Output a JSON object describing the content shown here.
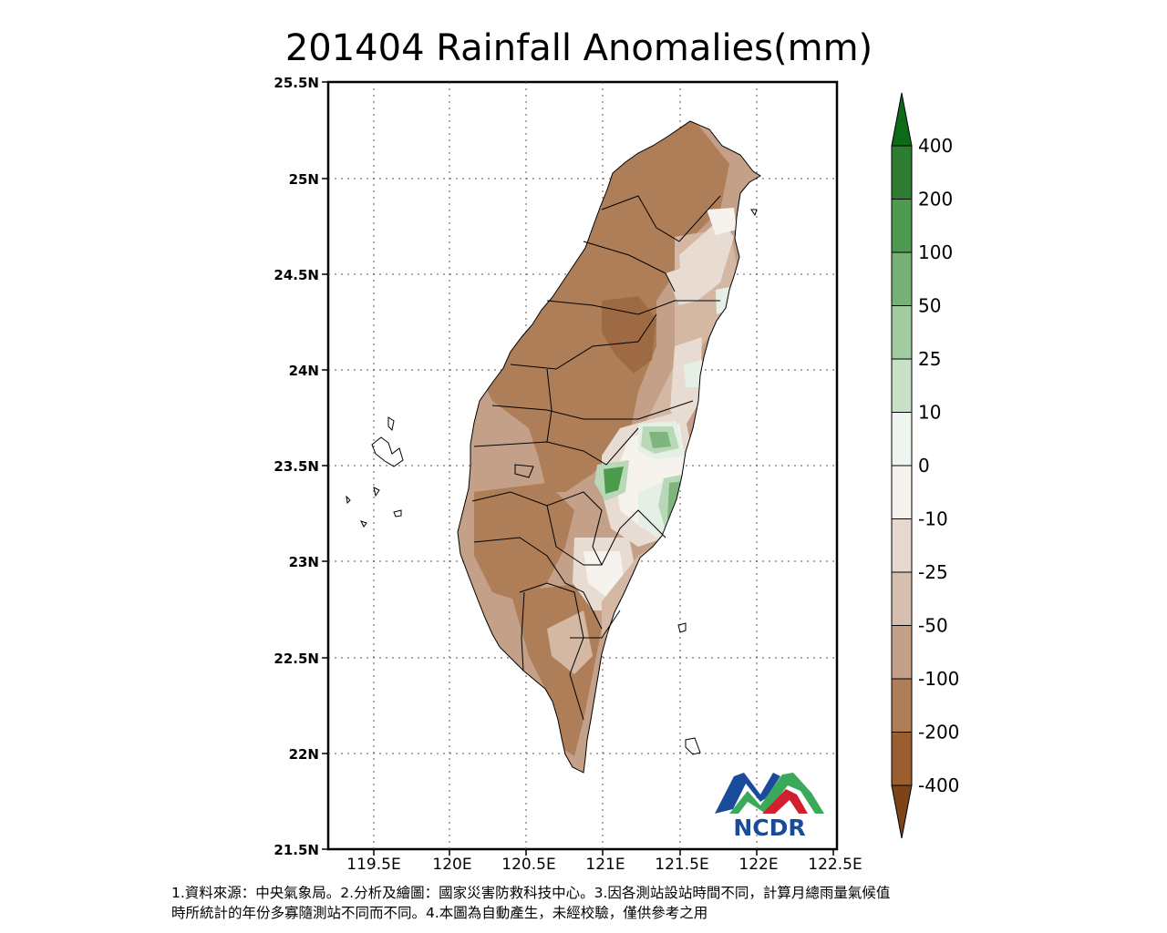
{
  "title": "201404 Rainfall Anomalies(mm)",
  "map": {
    "lat_labels": [
      "25.5N",
      "25N",
      "24.5N",
      "24N",
      "23.5N",
      "23N",
      "22.5N",
      "22N",
      "21.5N"
    ],
    "lon_labels": [
      "119.5E",
      "120E",
      "120.5E",
      "121E",
      "121.5E",
      "122E",
      "122.5E"
    ],
    "land_colors": {
      "deep_dry": "#9e6a44",
      "very_dry": "#ae7e58",
      "dry": "#c4a088",
      "slightly_dry": "#d4b8a4",
      "near_normal": "#e8dcd2",
      "normal": "#f6f2ee",
      "slightly_wet": "#e6efe6",
      "wet": "#b8d8b8",
      "very_wet": "#7eb47e",
      "very_very_wet": "#4c9a4c"
    }
  },
  "colorbar": {
    "labels": [
      "400",
      "200",
      "100",
      "50",
      "25",
      "10",
      "0",
      "-10",
      "-25",
      "-50",
      "-100",
      "-200",
      "-400"
    ],
    "colors": [
      "#0c6a18",
      "#2e7d32",
      "#4e9a4e",
      "#76b276",
      "#a2cba2",
      "#c8e2c8",
      "#eef4ee",
      "#f6f2ee",
      "#e6d8ce",
      "#d6bfae",
      "#c4a088",
      "#ae7e58",
      "#9a5e30",
      "#7e4418"
    ]
  },
  "logo": {
    "text": "NCDR",
    "blue": "#1a4a9a",
    "green": "#3aaa5a",
    "red": "#d02030"
  },
  "notes": [
    "1.資料來源：中央氣象局。2.分析及繪圖：國家災害防救科技中心。3.因各測站設站時間不同，計算月總雨量氣候值",
    "時所統計的年份多寡隨測站不同而不同。4.本圖為自動產生，未經校驗，僅供參考之用"
  ]
}
